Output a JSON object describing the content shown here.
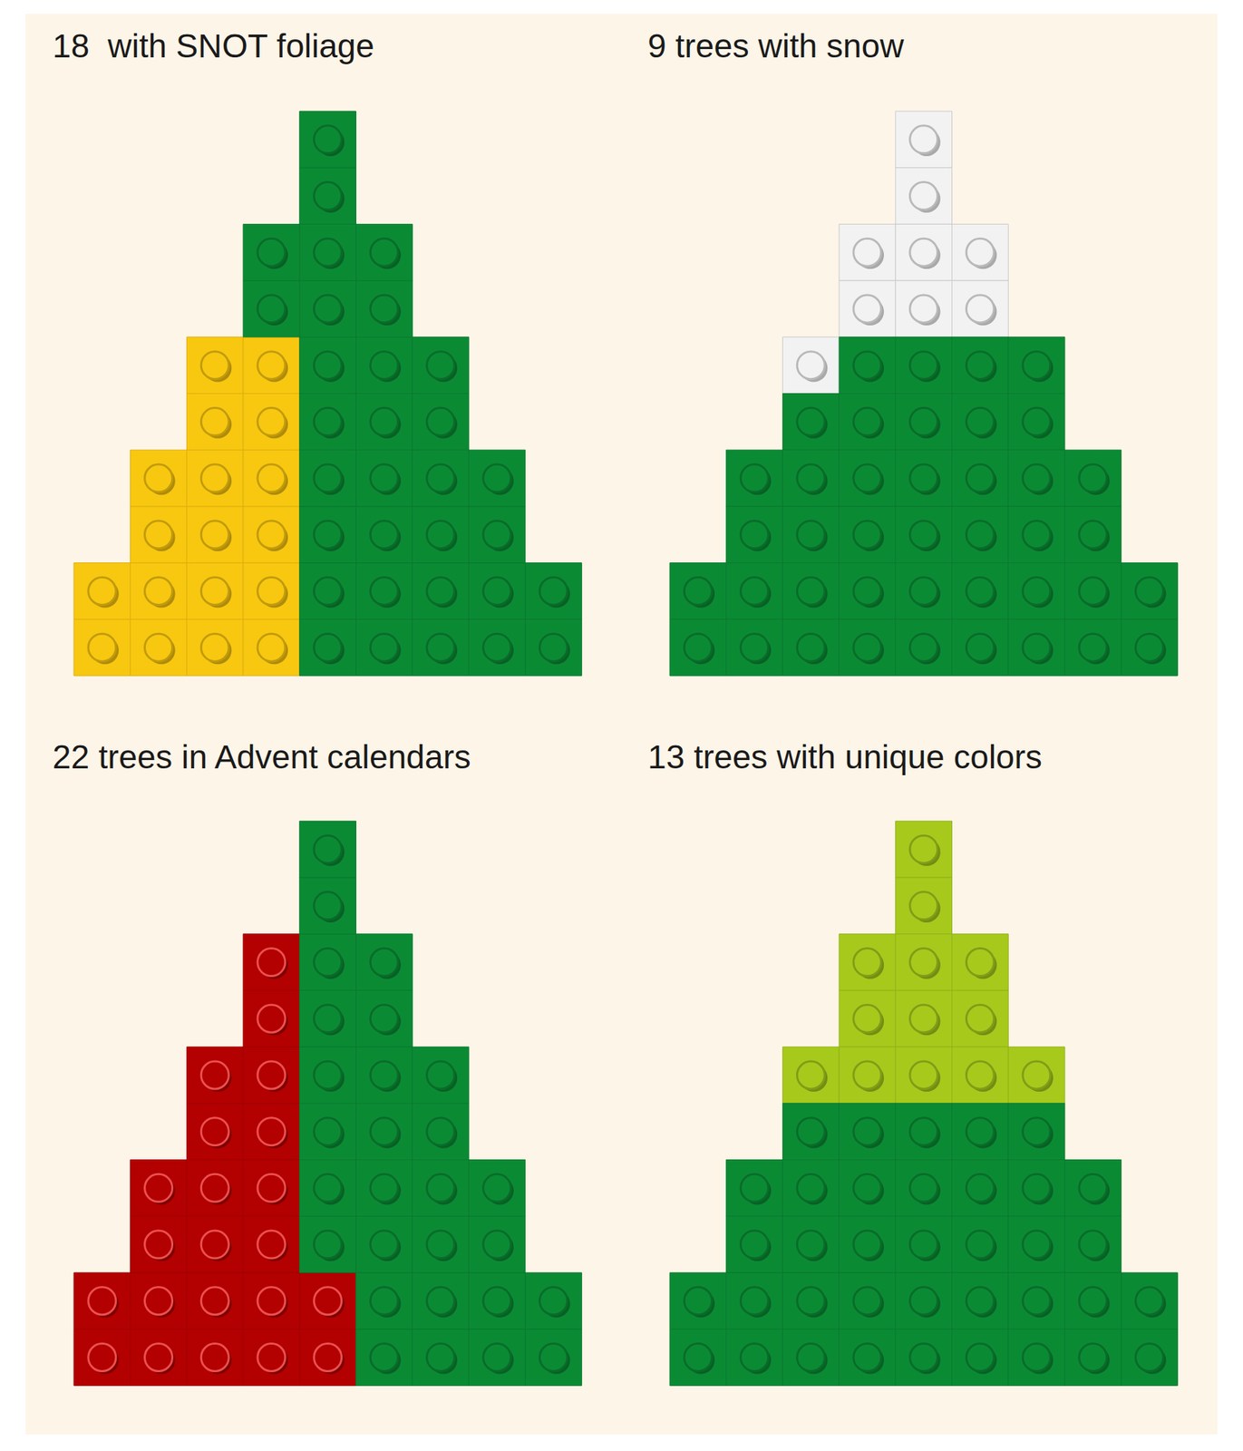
{
  "chart_data": {
    "type": "pictogram",
    "categories": [
      "18  with SNOT foliage",
      "9 trees with snow",
      "22 trees in Advent calendars",
      "13 trees with unique colors"
    ],
    "values": [
      18,
      9,
      22,
      13
    ],
    "colors": [
      "#f8c710",
      "#f2f2f2",
      "#b30000",
      "#a6c91c"
    ],
    "color": "#0b8a34",
    "tick_labels": false
  }
}
